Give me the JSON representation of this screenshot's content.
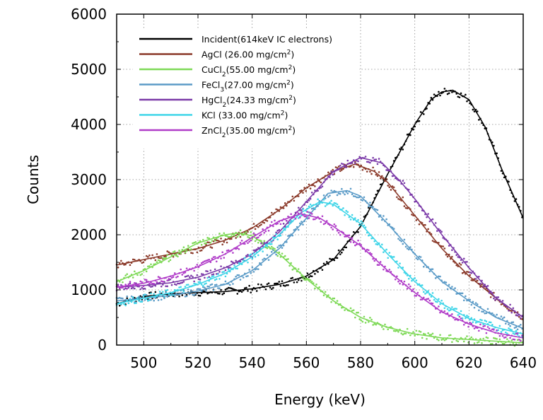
{
  "chart_data": {
    "type": "scatter",
    "xlabel": "Energy (keV)",
    "ylabel": "Counts",
    "xlim": [
      490,
      640
    ],
    "ylim": [
      0,
      6000
    ],
    "x_ticks": [
      "500",
      "520",
      "540",
      "560",
      "580",
      "600",
      "620",
      "640"
    ],
    "y_ticks": [
      "0",
      "1000",
      "2000",
      "3000",
      "4000",
      "5000",
      "6000"
    ],
    "grid": true,
    "legend_position": "top-left",
    "series": [
      {
        "legend": {
          "main": "Incident(614keV IC electrons)"
        },
        "color": "#000000",
        "peak": 614,
        "amplitude": 4600,
        "base": 0,
        "points": [
          [
            490,
            750
          ],
          [
            500,
            880
          ],
          [
            510,
            930
          ],
          [
            520,
            950
          ],
          [
            530,
            970
          ],
          [
            540,
            1020
          ],
          [
            550,
            1100
          ],
          [
            560,
            1250
          ],
          [
            570,
            1550
          ],
          [
            580,
            2150
          ],
          [
            590,
            3100
          ],
          [
            600,
            4000
          ],
          [
            606,
            4450
          ],
          [
            610,
            4590
          ],
          [
            614,
            4620
          ],
          [
            620,
            4450
          ],
          [
            626,
            3950
          ],
          [
            632,
            3200
          ],
          [
            640,
            2300
          ]
        ]
      },
      {
        "legend": {
          "main": "AgCl  (26.00 mg/cm",
          "sup": "2",
          "tail": ")"
        },
        "color": "#8B3A2A",
        "points": [
          [
            490,
            1450
          ],
          [
            500,
            1550
          ],
          [
            510,
            1650
          ],
          [
            520,
            1750
          ],
          [
            530,
            1900
          ],
          [
            540,
            2120
          ],
          [
            550,
            2450
          ],
          [
            560,
            2850
          ],
          [
            570,
            3150
          ],
          [
            578,
            3280
          ],
          [
            585,
            3150
          ],
          [
            590,
            2950
          ],
          [
            600,
            2350
          ],
          [
            610,
            1750
          ],
          [
            620,
            1250
          ],
          [
            630,
            850
          ],
          [
            640,
            500
          ]
        ]
      },
      {
        "legend": {
          "main": "CuCl",
          "sub": "2",
          "mid": "(55.00 mg/cm",
          "sup": "2",
          "tail": ")"
        },
        "color": "#7ED957",
        "points": [
          [
            490,
            1150
          ],
          [
            500,
            1350
          ],
          [
            510,
            1600
          ],
          [
            520,
            1850
          ],
          [
            530,
            2000
          ],
          [
            535,
            2030
          ],
          [
            540,
            1980
          ],
          [
            550,
            1650
          ],
          [
            560,
            1200
          ],
          [
            570,
            800
          ],
          [
            580,
            500
          ],
          [
            590,
            320
          ],
          [
            600,
            200
          ],
          [
            610,
            130
          ],
          [
            620,
            100
          ],
          [
            630,
            70
          ],
          [
            640,
            40
          ]
        ]
      },
      {
        "legend": {
          "main": "FeCl",
          "sub": "3",
          "mid": "(27.00 mg/cm",
          "sup": "2",
          "tail": ")"
        },
        "color": "#5B9BC7",
        "points": [
          [
            490,
            800
          ],
          [
            500,
            850
          ],
          [
            510,
            900
          ],
          [
            520,
            980
          ],
          [
            530,
            1100
          ],
          [
            540,
            1350
          ],
          [
            550,
            1750
          ],
          [
            560,
            2300
          ],
          [
            568,
            2750
          ],
          [
            575,
            2800
          ],
          [
            580,
            2700
          ],
          [
            590,
            2200
          ],
          [
            600,
            1650
          ],
          [
            610,
            1150
          ],
          [
            620,
            800
          ],
          [
            630,
            500
          ],
          [
            640,
            300
          ]
        ]
      },
      {
        "legend": {
          "main": "HgCl",
          "sub": "2",
          "mid": "(24.33 mg/cm",
          "sup": "2",
          "tail": ")"
        },
        "color": "#7B3AA8",
        "points": [
          [
            490,
            1050
          ],
          [
            500,
            1080
          ],
          [
            510,
            1130
          ],
          [
            520,
            1230
          ],
          [
            530,
            1400
          ],
          [
            540,
            1650
          ],
          [
            550,
            2050
          ],
          [
            560,
            2600
          ],
          [
            570,
            3150
          ],
          [
            580,
            3400
          ],
          [
            588,
            3300
          ],
          [
            595,
            2950
          ],
          [
            600,
            2650
          ],
          [
            610,
            2000
          ],
          [
            620,
            1400
          ],
          [
            630,
            850
          ],
          [
            640,
            500
          ]
        ]
      },
      {
        "legend": {
          "main": "KCl   (33.00 mg/cm",
          "sup": "2",
          "tail": ")"
        },
        "color": "#3FD5E8",
        "points": [
          [
            490,
            750
          ],
          [
            500,
            850
          ],
          [
            510,
            950
          ],
          [
            520,
            1100
          ],
          [
            530,
            1300
          ],
          [
            540,
            1600
          ],
          [
            550,
            2000
          ],
          [
            558,
            2400
          ],
          [
            565,
            2600
          ],
          [
            570,
            2550
          ],
          [
            580,
            2200
          ],
          [
            590,
            1650
          ],
          [
            600,
            1150
          ],
          [
            610,
            750
          ],
          [
            620,
            480
          ],
          [
            630,
            320
          ],
          [
            640,
            200
          ]
        ]
      },
      {
        "legend": {
          "main": "ZnCl",
          "sub": "2",
          "mid": "(35.00 mg/cm",
          "sup": "2",
          "tail": ")"
        },
        "color": "#B03CC8",
        "points": [
          [
            490,
            1050
          ],
          [
            500,
            1120
          ],
          [
            510,
            1250
          ],
          [
            520,
            1420
          ],
          [
            530,
            1650
          ],
          [
            540,
            1950
          ],
          [
            550,
            2250
          ],
          [
            558,
            2380
          ],
          [
            565,
            2300
          ],
          [
            570,
            2150
          ],
          [
            580,
            1800
          ],
          [
            590,
            1350
          ],
          [
            600,
            950
          ],
          [
            610,
            600
          ],
          [
            620,
            380
          ],
          [
            630,
            220
          ],
          [
            640,
            130
          ]
        ]
      }
    ]
  }
}
